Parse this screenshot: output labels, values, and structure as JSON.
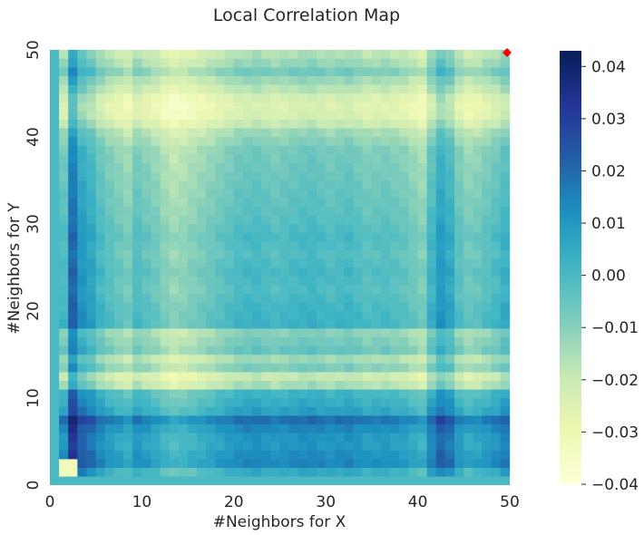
{
  "chart_data": {
    "type": "heatmap",
    "title": "Local Correlation Map",
    "xlabel": "#Neighbors for X",
    "ylabel": "#Neighbors for Y",
    "xlim": [
      0,
      50
    ],
    "ylim": [
      0,
      50
    ],
    "xticks": [
      "0",
      "10",
      "20",
      "30",
      "40",
      "50"
    ],
    "yticks": [
      "0",
      "10",
      "20",
      "30",
      "40",
      "50"
    ],
    "colorbar": {
      "min": -0.04,
      "max": 0.043,
      "ticks": [
        "−0.04",
        "−0.03",
        "−0.02",
        "−0.01",
        "0.00",
        "0.01",
        "0.02",
        "0.03",
        "0.04"
      ],
      "tick_values": [
        -0.04,
        -0.03,
        -0.02,
        -0.01,
        0.0,
        0.01,
        0.02,
        0.03,
        0.04
      ],
      "colormap": "YlGnBu"
    },
    "marker": {
      "x": 50,
      "y": 50,
      "color": "#ff0000",
      "shape": "diamond"
    },
    "row_pattern": [
      [
        1,
        0.008
      ],
      [
        2,
        0.022
      ],
      [
        3,
        0.02
      ],
      [
        4,
        0.016
      ],
      [
        5,
        0.017
      ],
      [
        6,
        0.022
      ],
      [
        7,
        0.03
      ],
      [
        8,
        0.012
      ],
      [
        9,
        0.007
      ],
      [
        10,
        0.003
      ],
      [
        11,
        -0.024
      ],
      [
        12,
        -0.031
      ],
      [
        13,
        -0.014
      ],
      [
        14,
        -0.022
      ],
      [
        15,
        -0.008
      ],
      [
        16,
        -0.012
      ],
      [
        17,
        -0.016
      ],
      [
        18,
        0.004
      ],
      [
        20,
        0.002
      ],
      [
        22,
        -0.002
      ],
      [
        24,
        0.001
      ],
      [
        26,
        -0.003
      ],
      [
        28,
        0.0
      ],
      [
        30,
        -0.004
      ],
      [
        32,
        -0.006
      ],
      [
        34,
        -0.008
      ],
      [
        36,
        -0.01
      ],
      [
        38,
        -0.012
      ],
      [
        40,
        -0.021
      ],
      [
        41,
        -0.031
      ],
      [
        42,
        -0.038
      ],
      [
        43,
        -0.04
      ],
      [
        44,
        -0.037
      ],
      [
        45,
        -0.028
      ],
      [
        46,
        -0.021
      ],
      [
        47,
        -0.012
      ],
      [
        48,
        -0.02
      ],
      [
        49,
        -0.026
      ],
      [
        50,
        -0.026
      ]
    ],
    "col_pattern": [
      [
        1,
        0.0
      ],
      [
        2,
        0.036
      ],
      [
        3,
        0.018
      ],
      [
        4,
        0.012
      ],
      [
        5,
        0.002
      ],
      [
        6,
        -0.004
      ],
      [
        7,
        -0.008
      ],
      [
        8,
        -0.012
      ],
      [
        9,
        -0.002
      ],
      [
        10,
        -0.006
      ],
      [
        11,
        -0.01
      ],
      [
        12,
        -0.016
      ],
      [
        13,
        -0.02
      ],
      [
        14,
        -0.018
      ],
      [
        16,
        -0.012
      ],
      [
        18,
        -0.006
      ],
      [
        20,
        0.0
      ],
      [
        22,
        0.002
      ],
      [
        24,
        -0.002
      ],
      [
        26,
        0.001
      ],
      [
        28,
        0.003
      ],
      [
        30,
        -0.001
      ],
      [
        32,
        0.002
      ],
      [
        34,
        -0.004
      ],
      [
        36,
        -0.002
      ],
      [
        38,
        -0.006
      ],
      [
        40,
        -0.014
      ],
      [
        41,
        0.004
      ],
      [
        42,
        0.016
      ],
      [
        43,
        0.01
      ],
      [
        44,
        -0.004
      ],
      [
        45,
        -0.01
      ],
      [
        46,
        -0.008
      ],
      [
        47,
        -0.004
      ],
      [
        48,
        0.0
      ],
      [
        49,
        0.006
      ],
      [
        50,
        0.004
      ]
    ]
  }
}
